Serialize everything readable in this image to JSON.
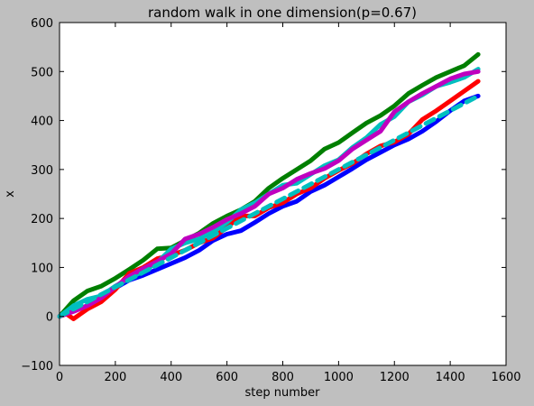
{
  "chart_data": {
    "type": "line",
    "title": "random walk in one dimension(p=0.67)",
    "xlabel": "step number",
    "ylabel": "x",
    "xlim": [
      0,
      1600
    ],
    "ylim": [
      -100,
      600
    ],
    "xticks": [
      0,
      200,
      400,
      600,
      800,
      1000,
      1200,
      1400,
      1600
    ],
    "yticks": [
      -100,
      0,
      100,
      200,
      300,
      400,
      500,
      600
    ],
    "xtick_labels": [
      "0",
      "200",
      "400",
      "600",
      "800",
      "1000",
      "1200",
      "1400",
      "1600"
    ],
    "ytick_labels": [
      "−100",
      "0",
      "100",
      "200",
      "300",
      "400",
      "500",
      "600"
    ],
    "grid": false,
    "legend": null,
    "series": [
      {
        "color": "#0000ff",
        "style": "solid",
        "x": [
          0,
          50,
          100,
          150,
          200,
          250,
          300,
          350,
          400,
          450,
          500,
          550,
          600,
          650,
          700,
          750,
          800,
          850,
          900,
          950,
          1000,
          1050,
          1100,
          1150,
          1200,
          1250,
          1300,
          1350,
          1400,
          1450,
          1500
        ],
        "y": [
          0,
          12,
          22,
          42,
          58,
          74,
          84,
          96,
          108,
          120,
          135,
          155,
          168,
          175,
          192,
          210,
          225,
          235,
          255,
          268,
          285,
          302,
          320,
          335,
          350,
          362,
          378,
          398,
          420,
          440,
          450
        ]
      },
      {
        "color": "#007f00",
        "style": "solid",
        "x": [
          0,
          50,
          100,
          150,
          200,
          250,
          300,
          350,
          400,
          450,
          500,
          550,
          600,
          650,
          700,
          750,
          800,
          850,
          900,
          950,
          1000,
          1050,
          1100,
          1150,
          1200,
          1250,
          1300,
          1350,
          1400,
          1450,
          1500
        ],
        "y": [
          0,
          32,
          52,
          62,
          78,
          96,
          115,
          138,
          140,
          155,
          170,
          190,
          205,
          218,
          235,
          262,
          282,
          300,
          318,
          342,
          355,
          375,
          395,
          410,
          430,
          455,
          472,
          488,
          500,
          512,
          535
        ]
      },
      {
        "color": "#ff0000",
        "style": "solid",
        "x": [
          0,
          25,
          50,
          75,
          100,
          150,
          200,
          250,
          300,
          350,
          400,
          450,
          500,
          550,
          600,
          650,
          700,
          750,
          800,
          850,
          900,
          950,
          1000,
          1050,
          1100,
          1150,
          1200,
          1250,
          1300,
          1350,
          1400,
          1450,
          1500
        ],
        "y": [
          0,
          5,
          -5,
          5,
          15,
          30,
          55,
          88,
          100,
          118,
          125,
          135,
          150,
          160,
          182,
          205,
          205,
          222,
          232,
          250,
          262,
          282,
          298,
          312,
          332,
          348,
          356,
          372,
          402,
          420,
          440,
          460,
          480
        ]
      },
      {
        "color": "#00bfbf",
        "style": "solid",
        "x": [
          0,
          50,
          100,
          150,
          200,
          250,
          300,
          350,
          400,
          450,
          500,
          550,
          600,
          650,
          700,
          750,
          800,
          850,
          900,
          950,
          1000,
          1050,
          1100,
          1150,
          1200,
          1250,
          1300,
          1350,
          1400,
          1450,
          1500
        ],
        "y": [
          0,
          22,
          35,
          42,
          62,
          78,
          92,
          110,
          138,
          150,
          158,
          172,
          192,
          218,
          232,
          250,
          268,
          272,
          290,
          308,
          320,
          345,
          365,
          392,
          408,
          438,
          452,
          470,
          478,
          488,
          505
        ]
      },
      {
        "color": "#bf00bf",
        "style": "solid",
        "x": [
          0,
          50,
          100,
          150,
          200,
          250,
          300,
          350,
          400,
          450,
          500,
          550,
          600,
          650,
          700,
          750,
          800,
          850,
          900,
          950,
          1000,
          1050,
          1100,
          1150,
          1200,
          1250,
          1300,
          1350,
          1400,
          1450,
          1500
        ],
        "y": [
          0,
          10,
          22,
          38,
          60,
          82,
          98,
          112,
          128,
          158,
          168,
          182,
          198,
          210,
          225,
          250,
          262,
          280,
          292,
          302,
          318,
          342,
          360,
          378,
          418,
          438,
          455,
          470,
          485,
          495,
          500
        ]
      },
      {
        "color": "#00bfbf",
        "style": "dashed",
        "x": [
          0,
          1500
        ],
        "y": [
          0,
          450
        ]
      }
    ]
  }
}
